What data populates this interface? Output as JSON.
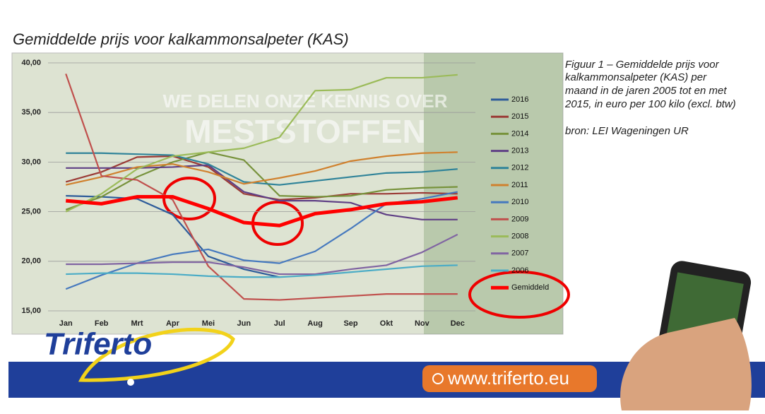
{
  "title": "Gemiddelde prijs voor kalkammonsalpeter (KAS)",
  "caption": [
    "Figuur 1 – Gemiddelde prijs voor",
    "kalkammonsalpeter (KAS) per",
    "maand in de jaren 2005 tot en met",
    "2015, in euro per 100 kilo (excl. btw)"
  ],
  "source": "bron: LEI Wageningen UR",
  "watermark": [
    "WE DELEN ONZE KENNIS OVER",
    "MESTSTOFFEN"
  ],
  "logo": "Triferto",
  "url": "www.triferto.eu",
  "chart_data": {
    "type": "line",
    "categories": [
      "Jan",
      "Feb",
      "Mrt",
      "Apr",
      "Mei",
      "Jun",
      "Jul",
      "Aug",
      "Sep",
      "Okt",
      "Nov",
      "Dec"
    ],
    "ylim": [
      15,
      40
    ],
    "yticks": [
      {
        "value": 15,
        "label": "15,00"
      },
      {
        "value": 20,
        "label": "20,00"
      },
      {
        "value": 25,
        "label": "25,00"
      },
      {
        "value": 30,
        "label": "30,00"
      },
      {
        "value": 35,
        "label": "35,00"
      },
      {
        "value": 40,
        "label": "40,00"
      }
    ],
    "grid": true,
    "legend": "right",
    "series": [
      {
        "name": "2016",
        "color": "#2e5c9a",
        "values": [
          26.6,
          26.5,
          26.3,
          24.7,
          20.5,
          19.2,
          18.4,
          null,
          null,
          null,
          null,
          null
        ]
      },
      {
        "name": "2015",
        "color": "#9b3b36",
        "values": [
          28,
          29,
          30.5,
          30.6,
          29.5,
          26.8,
          26.2,
          26.4,
          26.8,
          26.8,
          26.9,
          26.8
        ]
      },
      {
        "name": "2014",
        "color": "#77923b",
        "values": [
          25.2,
          26.5,
          28.5,
          30,
          31,
          30.2,
          26.6,
          26.5,
          26.6,
          27.2,
          27.4,
          27.5
        ]
      },
      {
        "name": "2013",
        "color": "#5f3f85",
        "values": [
          29.4,
          29.4,
          29.4,
          29.5,
          29.7,
          27,
          26.1,
          26.1,
          25.9,
          24.7,
          24.2,
          24.2
        ]
      },
      {
        "name": "2012",
        "color": "#2f8399",
        "values": [
          30.9,
          30.9,
          30.8,
          30.7,
          29.8,
          28,
          27.7,
          28.1,
          28.5,
          28.9,
          29,
          29.3
        ]
      },
      {
        "name": "2011",
        "color": "#d0812e",
        "values": [
          27.7,
          28.5,
          29.5,
          29.8,
          29,
          27.8,
          28.4,
          29.1,
          30.1,
          30.6,
          30.9,
          31
        ]
      },
      {
        "name": "2010",
        "color": "#4679be",
        "values": [
          17.2,
          18.6,
          19.8,
          20.7,
          21.2,
          20.1,
          19.8,
          21,
          23.3,
          25.8,
          26.3,
          27
        ]
      },
      {
        "name": "2009",
        "color": "#c0504d",
        "values": [
          38.9,
          28.6,
          28.2,
          26.2,
          19.5,
          16.2,
          16.1,
          16.3,
          16.5,
          16.7,
          16.7,
          16.7
        ]
      },
      {
        "name": "2008",
        "color": "#9bbb59",
        "values": [
          25,
          26.8,
          29.3,
          30.6,
          31,
          31.4,
          32.5,
          37.2,
          37.3,
          38.5,
          38.5,
          38.8
        ]
      },
      {
        "name": "2007",
        "color": "#8064a2",
        "values": [
          19.7,
          19.7,
          19.8,
          19.9,
          19.9,
          19.4,
          18.7,
          18.7,
          19.2,
          19.6,
          20.9,
          22.7
        ]
      },
      {
        "name": "2006",
        "color": "#4bacc6",
        "values": [
          18.7,
          18.8,
          18.8,
          18.7,
          18.5,
          18.4,
          18.4,
          18.6,
          18.9,
          19.2,
          19.5,
          19.6
        ]
      },
      {
        "name": "Gemiddeld",
        "color": "#ff0000",
        "values": [
          26.1,
          25.8,
          26.5,
          26.5,
          25.3,
          23.9,
          23.6,
          24.8,
          25.2,
          25.8,
          26,
          26.4
        ]
      }
    ]
  }
}
